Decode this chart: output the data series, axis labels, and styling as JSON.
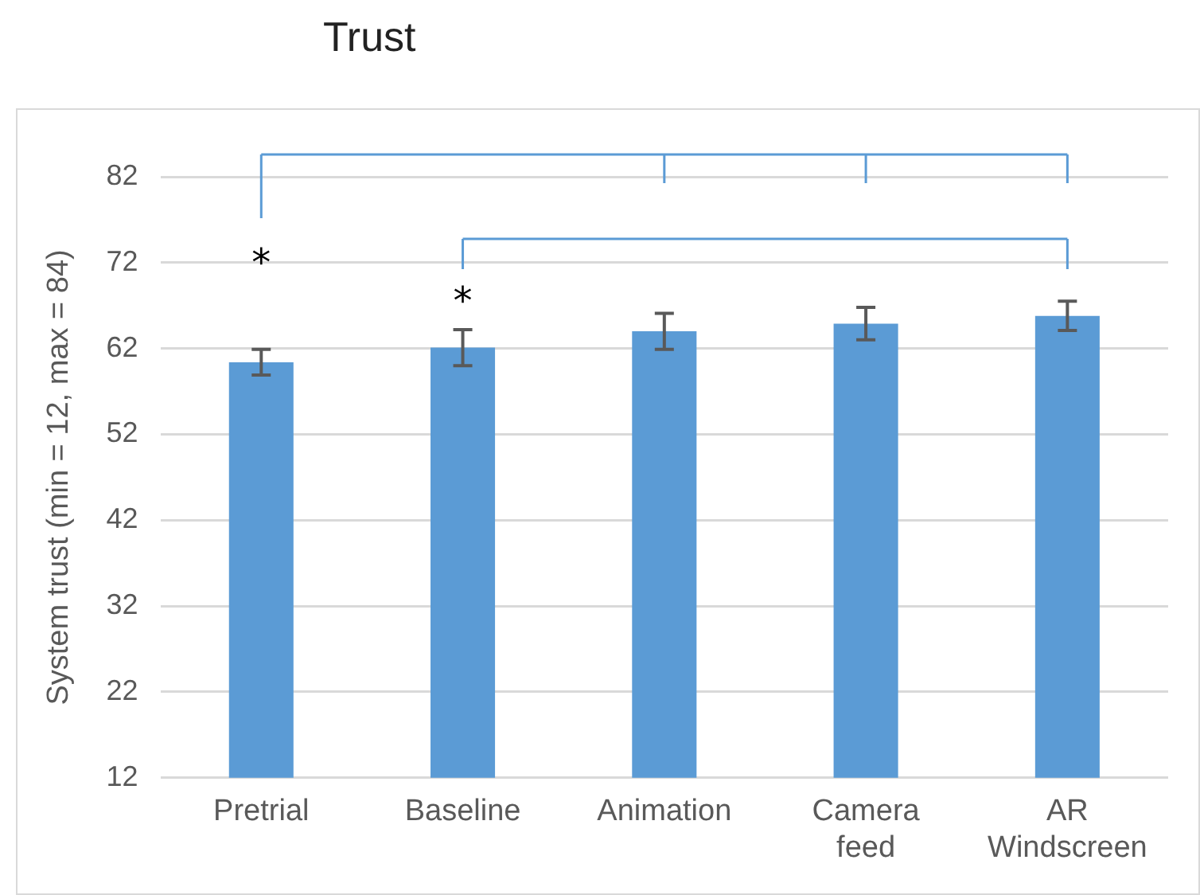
{
  "chart_data": {
    "type": "bar",
    "title": "Trust",
    "ylabel": "System trust (min = 12, max = 84)",
    "categories": [
      "Pretrial",
      "Baseline",
      "Animation",
      "Camera feed",
      "AR Windscreen"
    ],
    "values": [
      60.4,
      62.1,
      64.0,
      64.9,
      65.8
    ],
    "errors": [
      1.5,
      2.1,
      2.1,
      1.9,
      1.7
    ],
    "color": "#5b9bd5",
    "ylim": [
      12,
      82
    ],
    "yticks": [
      12,
      22,
      32,
      42,
      52,
      62,
      72,
      82
    ],
    "grid": "y",
    "legend": false,
    "annotations": [
      "*",
      "*"
    ]
  }
}
